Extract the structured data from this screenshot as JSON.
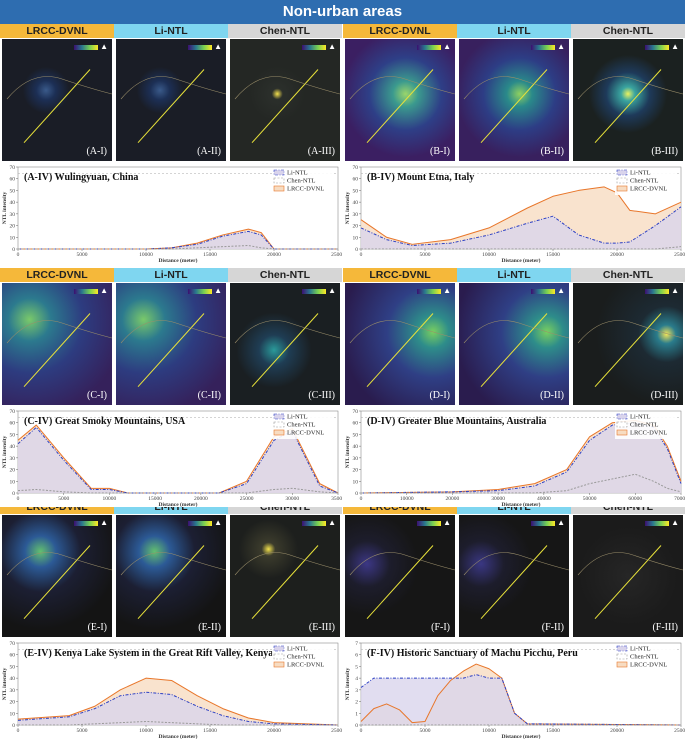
{
  "banner": "Non-urban areas",
  "colors": {
    "lrcc": "#f5b83a",
    "li": "#7fd6f0",
    "chen": "#d6d6d6",
    "lrcc_line": "#e8762a",
    "li_line": "#2b3fc4",
    "chen_line": "#999999",
    "lrcc_fill": "#f7dcc2",
    "li_fill": "#d9d4ec"
  },
  "headers": [
    "LRCC-DVNL",
    "Li-NTL",
    "Chen-NTL"
  ],
  "legend_labels": [
    "Li-NTL",
    "Chen-NTL",
    "LRCC-DVNL"
  ],
  "axis": {
    "xlabel": "Distance (meter)",
    "ylabel": "NTL intensity"
  },
  "map_labels": {
    "A": [
      "(A-I)",
      "(A-II)",
      "(A-III)"
    ],
    "B": [
      "(B-I)",
      "(B-II)",
      "(B-III)"
    ],
    "C": [
      "(C-I)",
      "(C-II)",
      "(C-III)"
    ],
    "D": [
      "(D-I)",
      "(D-II)",
      "(D-III)"
    ],
    "E": [
      "(E-I)",
      "(E-II)",
      "(E-III)"
    ],
    "F": [
      "(F-I)",
      "(F-II)",
      "(F-III)"
    ]
  },
  "chart_data": [
    {
      "id": "A",
      "type": "line",
      "title": "(A-IV) Wulingyuan, China",
      "xlim": [
        0,
        25000
      ],
      "ylim": [
        0,
        70
      ],
      "xticks": [
        0,
        5000,
        10000,
        15000,
        20000,
        25000
      ],
      "yticks": [
        0,
        10,
        20,
        30,
        40,
        50,
        60,
        70
      ],
      "x": [
        0,
        10000,
        12000,
        14000,
        16000,
        18000,
        19000,
        20000,
        25000
      ],
      "series": [
        {
          "name": "LRCC-DVNL",
          "values": [
            0,
            0,
            1,
            5,
            12,
            17,
            14,
            0,
            0
          ]
        },
        {
          "name": "Li-NTL",
          "values": [
            0,
            0,
            1,
            4,
            11,
            15,
            12,
            0,
            0
          ]
        },
        {
          "name": "Chen-NTL",
          "values": [
            0,
            0,
            0,
            1,
            2,
            3,
            1,
            0,
            0
          ]
        }
      ]
    },
    {
      "id": "B",
      "type": "line",
      "title": "(B-IV) Mount Etna, Italy",
      "xlim": [
        0,
        25000
      ],
      "ylim": [
        0,
        70
      ],
      "xticks": [
        0,
        5000,
        10000,
        15000,
        20000,
        25000
      ],
      "yticks": [
        0,
        10,
        20,
        30,
        40,
        50,
        60,
        70
      ],
      "x": [
        0,
        2000,
        4000,
        7000,
        10000,
        13000,
        15000,
        17000,
        19000,
        20000,
        21000,
        23000,
        25000
      ],
      "series": [
        {
          "name": "LRCC-DVNL",
          "values": [
            25,
            10,
            4,
            8,
            18,
            35,
            45,
            50,
            53,
            48,
            33,
            30,
            40
          ]
        },
        {
          "name": "Li-NTL",
          "values": [
            18,
            8,
            3,
            5,
            12,
            22,
            28,
            12,
            5,
            5,
            6,
            20,
            36
          ]
        },
        {
          "name": "Chen-NTL",
          "values": [
            0,
            0,
            0,
            0,
            0,
            0,
            0,
            0,
            0,
            0,
            0,
            0,
            2
          ]
        }
      ]
    },
    {
      "id": "C",
      "type": "line",
      "title": "(C-IV) Great Smoky Mountains, USA",
      "xlim": [
        0,
        35000
      ],
      "ylim": [
        0,
        70
      ],
      "xticks": [
        0,
        5000,
        10000,
        15000,
        20000,
        25000,
        30000,
        35000
      ],
      "yticks": [
        0,
        10,
        20,
        30,
        40,
        50,
        60,
        70
      ],
      "x": [
        0,
        2000,
        5000,
        8000,
        10000,
        12000,
        22000,
        25000,
        28000,
        30000,
        33000,
        35000
      ],
      "series": [
        {
          "name": "LRCC-DVNL",
          "values": [
            45,
            58,
            30,
            4,
            4,
            0,
            0,
            10,
            48,
            55,
            8,
            0
          ]
        },
        {
          "name": "Li-NTL",
          "values": [
            42,
            56,
            28,
            3,
            3,
            0,
            0,
            8,
            45,
            53,
            6,
            0
          ]
        },
        {
          "name": "Chen-NTL",
          "values": [
            2,
            3,
            1,
            0,
            0,
            0,
            0,
            0,
            3,
            4,
            1,
            0
          ]
        }
      ]
    },
    {
      "id": "D",
      "type": "line",
      "title": "(D-IV) Greater Blue Mountains, Australia",
      "xlim": [
        0,
        70000
      ],
      "ylim": [
        0,
        70
      ],
      "xticks": [
        0,
        10000,
        20000,
        30000,
        40000,
        50000,
        60000,
        70000
      ],
      "yticks": [
        0,
        10,
        20,
        30,
        40,
        50,
        60,
        70
      ],
      "x": [
        0,
        20000,
        30000,
        38000,
        45000,
        50000,
        55000,
        60000,
        64000,
        67000,
        70000
      ],
      "series": [
        {
          "name": "LRCC-DVNL",
          "values": [
            0,
            1,
            3,
            8,
            20,
            48,
            60,
            62,
            58,
            40,
            10
          ]
        },
        {
          "name": "Li-NTL",
          "values": [
            0,
            1,
            2,
            6,
            18,
            45,
            58,
            60,
            56,
            38,
            8
          ]
        },
        {
          "name": "Chen-NTL",
          "values": [
            0,
            0,
            0,
            0,
            2,
            8,
            12,
            16,
            10,
            4,
            1
          ]
        }
      ]
    },
    {
      "id": "E",
      "type": "line",
      "title": "(E-IV) Kenya Lake System in the Great Rift Valley, Kenya",
      "xlim": [
        0,
        25000
      ],
      "ylim": [
        0,
        70
      ],
      "xticks": [
        0,
        5000,
        10000,
        15000,
        20000,
        25000
      ],
      "yticks": [
        0,
        10,
        20,
        30,
        40,
        50,
        60,
        70
      ],
      "x": [
        0,
        4000,
        6000,
        8000,
        10000,
        12000,
        14000,
        16000,
        18000,
        20000,
        25000
      ],
      "series": [
        {
          "name": "LRCC-DVNL",
          "values": [
            5,
            8,
            16,
            30,
            40,
            38,
            25,
            14,
            6,
            2,
            0
          ]
        },
        {
          "name": "Li-NTL",
          "values": [
            4,
            7,
            14,
            25,
            28,
            26,
            16,
            8,
            3,
            1,
            0
          ]
        },
        {
          "name": "Chen-NTL",
          "values": [
            0,
            0,
            1,
            2,
            3,
            2,
            1,
            0,
            0,
            0,
            0
          ]
        }
      ]
    },
    {
      "id": "F",
      "type": "line",
      "title": "(F-IV) Historic Sanctuary of Machu Picchu, Peru",
      "xlim": [
        0,
        25000
      ],
      "ylim": [
        0,
        7
      ],
      "xticks": [
        0,
        5000,
        10000,
        15000,
        20000,
        25000
      ],
      "yticks": [
        0,
        1,
        2,
        3,
        4,
        5,
        6,
        7
      ],
      "x": [
        0,
        1000,
        2000,
        3000,
        4000,
        5000,
        6000,
        7000,
        8000,
        9000,
        10000,
        11000,
        12000,
        13000,
        25000
      ],
      "series": [
        {
          "name": "LRCC-DVNL",
          "values": [
            0.3,
            1.4,
            1.8,
            1.3,
            0.2,
            0.3,
            2.5,
            3.8,
            4.6,
            5.2,
            4.8,
            4.0,
            1.0,
            0.1,
            0
          ]
        },
        {
          "name": "Li-NTL",
          "values": [
            3.2,
            4.0,
            4.0,
            4.0,
            4.0,
            4.0,
            4.0,
            4.0,
            4.0,
            4.3,
            4.0,
            4.0,
            1.0,
            0.1,
            0
          ]
        },
        {
          "name": "Chen-NTL",
          "values": [
            0,
            0,
            0,
            0,
            0,
            0,
            0,
            0,
            0,
            0,
            0,
            0,
            0,
            0,
            0
          ]
        }
      ]
    }
  ]
}
